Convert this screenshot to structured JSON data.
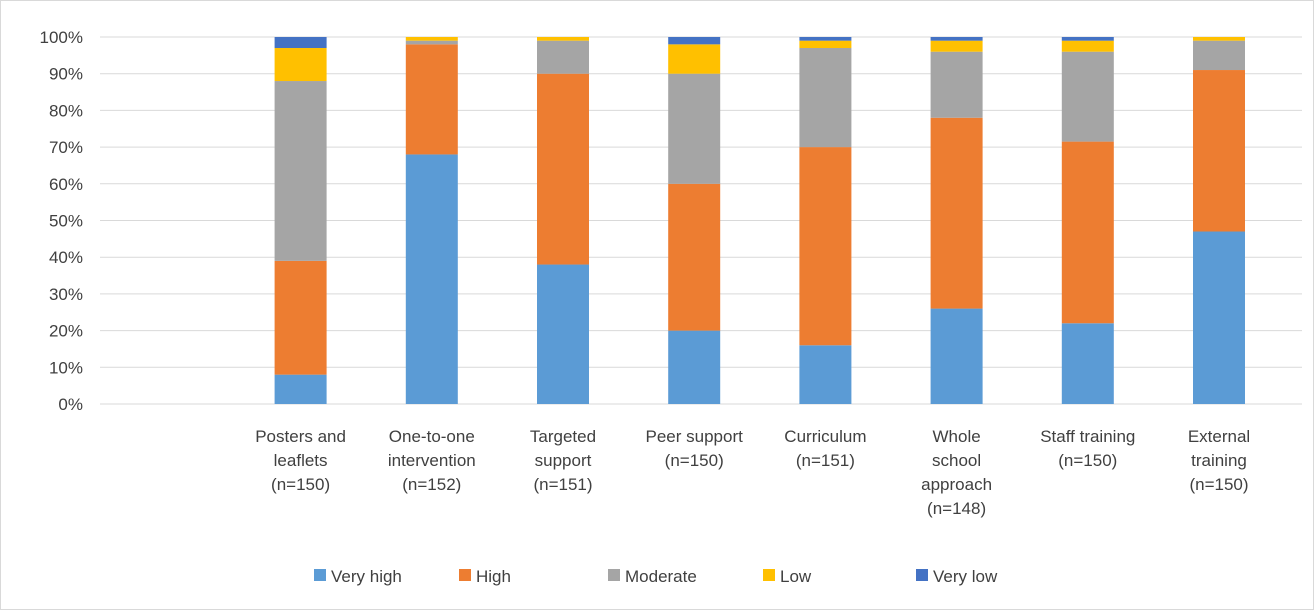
{
  "chart_data": {
    "type": "bar",
    "stacked": true,
    "percent": true,
    "title": "",
    "xlabel": "",
    "ylabel": "",
    "ylim": [
      0,
      100
    ],
    "y_ticks": [
      "0%",
      "10%",
      "20%",
      "30%",
      "40%",
      "50%",
      "60%",
      "70%",
      "80%",
      "90%",
      "100%"
    ],
    "grid": true,
    "legend_position": "bottom",
    "categories": [
      [
        "Posters and",
        "leaflets",
        "(n=150)"
      ],
      [
        "One-to-one",
        "intervention",
        "(n=152)"
      ],
      [
        "Targeted",
        "support",
        "(n=151)"
      ],
      [
        "Peer support",
        "(n=150)"
      ],
      [
        "Curriculum",
        "(n=151)"
      ],
      [
        "Whole",
        "school",
        "approach",
        "(n=148)"
      ],
      [
        "Staff training",
        "(n=150)"
      ],
      [
        "External",
        "training",
        "(n=150)"
      ]
    ],
    "series": [
      {
        "name": "Very high",
        "color": "#5b9bd5",
        "values": [
          8,
          68,
          38,
          20,
          16,
          26,
          22,
          47
        ]
      },
      {
        "name": "High",
        "color": "#ed7d31",
        "values": [
          31,
          30,
          52,
          40,
          54,
          52,
          49.5,
          44
        ]
      },
      {
        "name": "Moderate",
        "color": "#a5a5a5",
        "values": [
          49,
          1,
          9,
          30,
          27,
          18,
          24.5,
          8
        ]
      },
      {
        "name": "Low",
        "color": "#ffc000",
        "values": [
          9,
          1,
          1,
          8,
          2,
          3,
          3,
          1
        ]
      },
      {
        "name": "Very low",
        "color": "#4472c4",
        "values": [
          3,
          0,
          0,
          2,
          1,
          1,
          1,
          0
        ]
      }
    ]
  }
}
